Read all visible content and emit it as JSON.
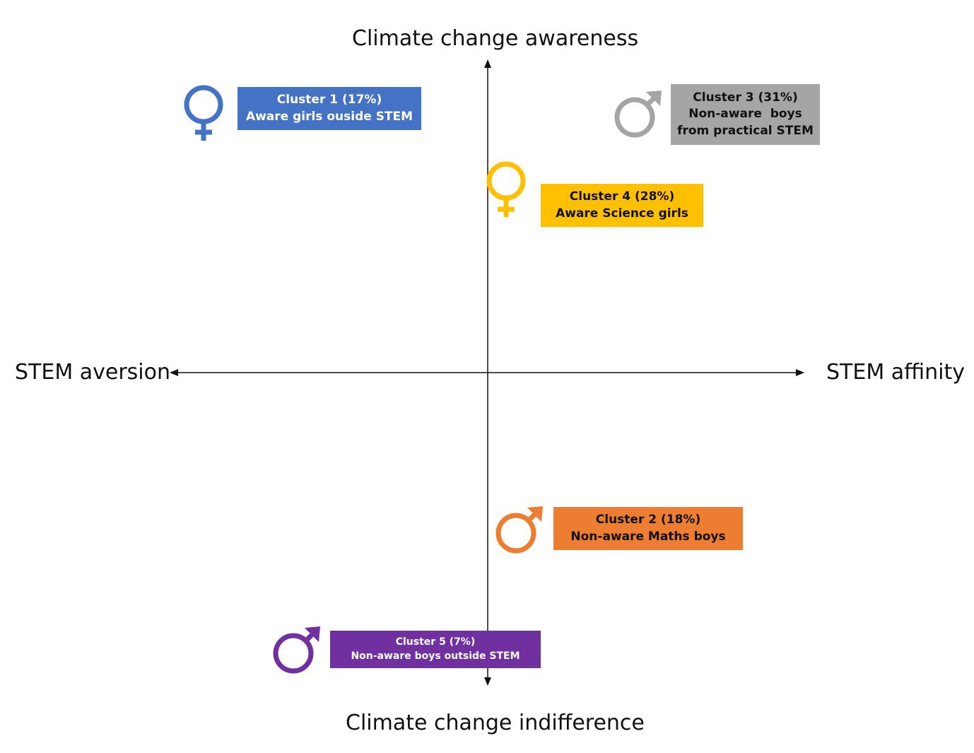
{
  "axes": {
    "top": "Climate change awareness",
    "bottom": "Climate change indifference",
    "left": "STEM aversion",
    "right": "STEM affinity"
  },
  "clusters": [
    {
      "title": "Cluster 1 (17%)",
      "lines": [
        "Aware girls ouside STEM"
      ],
      "gender": "female",
      "color": "#4472C4",
      "text_color": "#ffffff"
    },
    {
      "title": "Cluster 2 (18%)",
      "lines": [
        "Non-aware Maths boys"
      ],
      "gender": "male",
      "color": "#ED7D31",
      "text_color": "#111111"
    },
    {
      "title": "Cluster 3 (31%)",
      "lines": [
        "Non-aware  boys",
        "from practical STEM"
      ],
      "gender": "male",
      "color": "#A5A5A5",
      "text_color": "#111111"
    },
    {
      "title": "Cluster 4 (28%)",
      "lines": [
        "Aware Science girls"
      ],
      "gender": "female",
      "color": "#FFC000",
      "text_color": "#111111"
    },
    {
      "title": "Cluster 5 (7%)",
      "lines": [
        "Non-aware boys outside STEM"
      ],
      "gender": "male",
      "color": "#7030A0",
      "text_color": "#ffffff"
    }
  ]
}
